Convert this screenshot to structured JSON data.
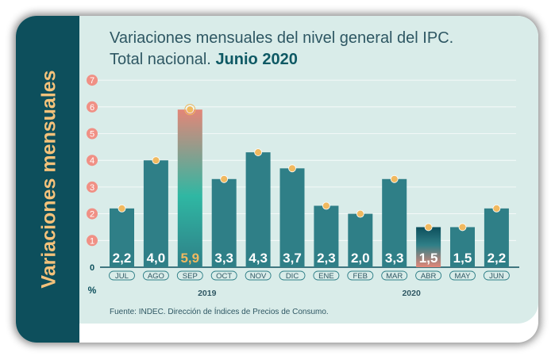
{
  "chart_data": {
    "type": "bar",
    "title": "Variaciones mensuales del nivel general del IPC.",
    "subtitle_prefix": "Total nacional.",
    "subtitle_highlight": "Junio 2020",
    "ylabel": "Variaciones mensuales",
    "y_unit": "%",
    "ylim": [
      0,
      7
    ],
    "yticks": [
      "0",
      "1",
      "2",
      "3",
      "4",
      "5",
      "6",
      "7"
    ],
    "categories": [
      "JUL",
      "AGO",
      "SEP",
      "OCT",
      "NOV",
      "DIC",
      "ENE",
      "FEB",
      "MAR",
      "ABR",
      "MAY",
      "JUN"
    ],
    "values": [
      2.2,
      4.0,
      5.9,
      3.3,
      4.3,
      3.7,
      2.3,
      2.0,
      3.3,
      1.5,
      1.5,
      2.2
    ],
    "value_labels": [
      "2,2",
      "4,0",
      "5,9",
      "3,3",
      "4,3",
      "3,7",
      "2,3",
      "2,0",
      "3,3",
      "1,5",
      "1,5",
      "2,2"
    ],
    "highlight": [
      "SEP",
      "ABR"
    ],
    "year_groups": [
      {
        "label": "2019",
        "from": "JUL",
        "to": "DIC"
      },
      {
        "label": "2020",
        "from": "ENE",
        "to": "JUN"
      }
    ],
    "grid": true,
    "source": "Fuente: INDEC. Dirección de Índices de Precios de Consumo.",
    "colors": {
      "bar": "#2f7f87",
      "highlight_top": "#e38678",
      "highlight_mid": "#2fb7a3",
      "dot": "#f0b960",
      "tick_circle": "#f09085",
      "axis_band": "#0d4f5c",
      "panel": "#d9ece9",
      "title": "#2e5763",
      "ylabel": "#f4c27b"
    }
  }
}
